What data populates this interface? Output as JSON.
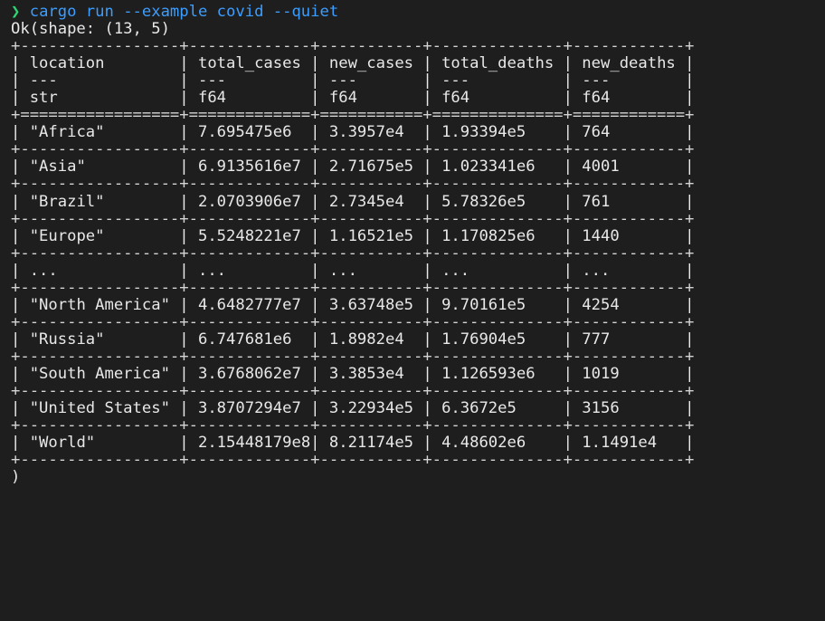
{
  "terminal": {
    "prompt_symbol": "❯",
    "command": "cargo run --example covid --quiet",
    "output_header": "Ok(shape: (13, 5)",
    "closing": ")"
  },
  "table": {
    "columns": [
      {
        "name": "location",
        "sep": "---",
        "dtype": "str"
      },
      {
        "name": "total_cases",
        "sep": "---",
        "dtype": "f64"
      },
      {
        "name": "new_cases",
        "sep": "---",
        "dtype": "f64"
      },
      {
        "name": "total_deaths",
        "sep": "---",
        "dtype": "f64"
      },
      {
        "name": "new_deaths",
        "sep": "---",
        "dtype": "f64"
      }
    ],
    "rows": [
      [
        "\"Africa\"",
        "7.695475e6",
        "3.3957e4",
        "1.93394e5",
        "764"
      ],
      [
        "\"Asia\"",
        "6.9135616e7",
        "2.71675e5",
        "1.023341e6",
        "4001"
      ],
      [
        "\"Brazil\"",
        "2.0703906e7",
        "2.7345e4",
        "5.78326e5",
        "761"
      ],
      [
        "\"Europe\"",
        "5.5248221e7",
        "1.16521e5",
        "1.170825e6",
        "1440"
      ],
      [
        "...",
        "...",
        "...",
        "...",
        "..."
      ],
      [
        "\"North America\"",
        "4.6482777e7",
        "3.63748e5",
        "9.70161e5",
        "4254"
      ],
      [
        "\"Russia\"",
        "6.747681e6",
        "1.8982e4",
        "1.76904e5",
        "777"
      ],
      [
        "\"South America\"",
        "3.6768062e7",
        "3.3853e4",
        "1.126593e6",
        "1019"
      ],
      [
        "\"United States\"",
        "3.8707294e7",
        "3.22934e5",
        "6.3672e5",
        "3156"
      ],
      [
        "\"World\"",
        "2.15448179e8",
        "8.21174e5",
        "4.48602e6",
        "1.1491e4"
      ]
    ]
  },
  "colors": {
    "background": "#1e1e1e",
    "text": "#e8e8e8",
    "prompt": "#2ed573",
    "command": "#3b9dff"
  }
}
